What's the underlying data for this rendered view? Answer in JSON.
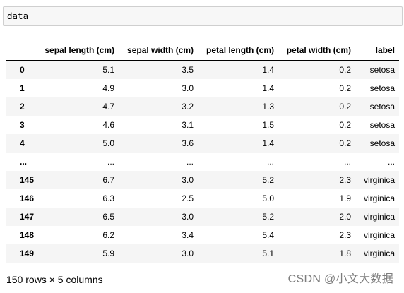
{
  "code_cell": {
    "code": "data"
  },
  "table": {
    "columns": [
      "",
      "sepal length (cm)",
      "sepal width (cm)",
      "petal length (cm)",
      "petal width (cm)",
      "label"
    ],
    "rows": [
      [
        "0",
        "5.1",
        "3.5",
        "1.4",
        "0.2",
        "setosa"
      ],
      [
        "1",
        "4.9",
        "3.0",
        "1.4",
        "0.2",
        "setosa"
      ],
      [
        "2",
        "4.7",
        "3.2",
        "1.3",
        "0.2",
        "setosa"
      ],
      [
        "3",
        "4.6",
        "3.1",
        "1.5",
        "0.2",
        "setosa"
      ],
      [
        "4",
        "5.0",
        "3.6",
        "1.4",
        "0.2",
        "setosa"
      ],
      [
        "...",
        "...",
        "...",
        "...",
        "...",
        "..."
      ],
      [
        "145",
        "6.7",
        "3.0",
        "5.2",
        "2.3",
        "virginica"
      ],
      [
        "146",
        "6.3",
        "2.5",
        "5.0",
        "1.9",
        "virginica"
      ],
      [
        "147",
        "6.5",
        "3.0",
        "5.2",
        "2.0",
        "virginica"
      ],
      [
        "148",
        "6.2",
        "3.4",
        "5.4",
        "2.3",
        "virginica"
      ],
      [
        "149",
        "5.9",
        "3.0",
        "5.1",
        "1.8",
        "virginica"
      ]
    ]
  },
  "footer": {
    "shape": "150 rows × 5 columns"
  },
  "watermark": {
    "text": "CSDN @小文大数据"
  }
}
